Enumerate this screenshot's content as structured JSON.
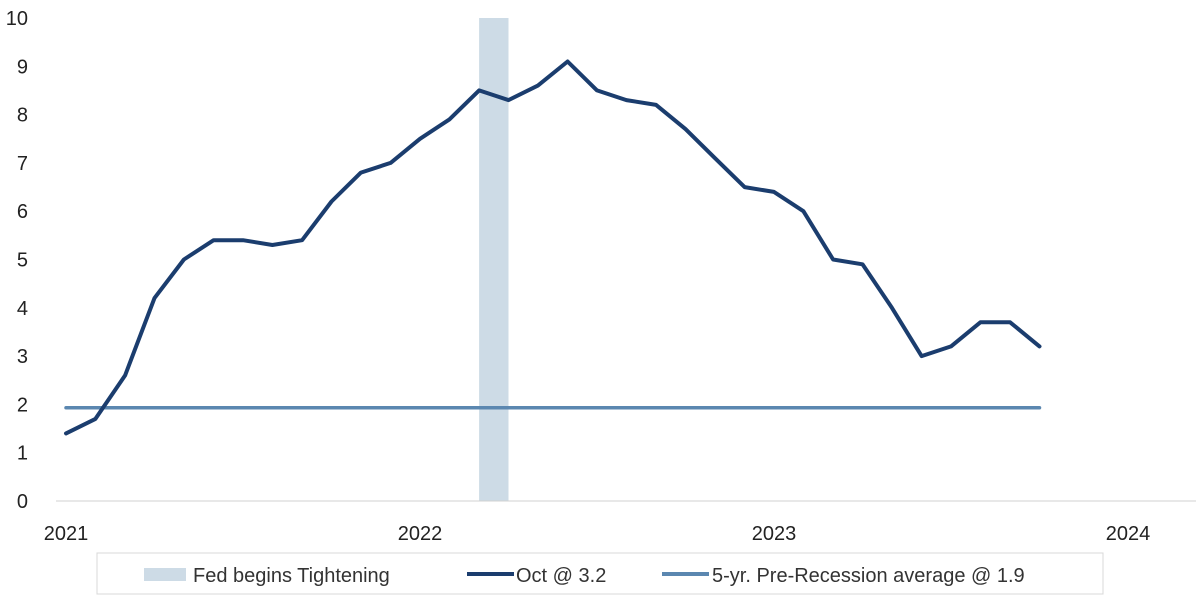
{
  "chart_data": {
    "type": "line",
    "title": "",
    "xlabel": "",
    "ylabel": "",
    "xlim": [
      2021,
      2024.25
    ],
    "ylim": [
      0,
      10
    ],
    "y_ticks": [
      0,
      1,
      2,
      3,
      4,
      5,
      6,
      7,
      8,
      9,
      10
    ],
    "x_ticks": [
      {
        "value": 2021,
        "label": "2021"
      },
      {
        "value": 2022,
        "label": "2022"
      },
      {
        "value": 2023,
        "label": "2023"
      },
      {
        "value": 2024,
        "label": "2024"
      }
    ],
    "grid": false,
    "legend_position": "bottom",
    "shaded_region": {
      "name": "Fed begins Tightening",
      "x_start": 2022.167,
      "x_end": 2022.25,
      "color": "#cddbe6"
    },
    "series": [
      {
        "name": "Oct @ 3.2",
        "color": "#1b3d6e",
        "x": [
          2021.0,
          2021.083,
          2021.167,
          2021.25,
          2021.333,
          2021.417,
          2021.5,
          2021.583,
          2021.667,
          2021.75,
          2021.833,
          2021.917,
          2022.0,
          2022.083,
          2022.167,
          2022.25,
          2022.333,
          2022.417,
          2022.5,
          2022.583,
          2022.667,
          2022.75,
          2022.833,
          2022.917,
          2023.0,
          2023.083,
          2023.167,
          2023.25,
          2023.333,
          2023.417,
          2023.5,
          2023.583,
          2023.667,
          2023.75
        ],
        "y": [
          1.4,
          1.7,
          2.6,
          4.2,
          5.0,
          5.4,
          5.4,
          5.3,
          5.4,
          6.2,
          6.8,
          7.0,
          7.5,
          7.9,
          8.5,
          8.3,
          8.6,
          9.1,
          8.5,
          8.3,
          8.2,
          7.7,
          7.1,
          6.5,
          6.4,
          6.0,
          5.0,
          4.9,
          4.0,
          3.0,
          3.2,
          3.7,
          3.7,
          3.2
        ]
      },
      {
        "name": "5-yr. Pre-Recession average @ 1.9",
        "color": "#5b87b0",
        "x": [
          2021.0,
          2023.75
        ],
        "y": [
          1.93,
          1.93
        ]
      }
    ]
  }
}
